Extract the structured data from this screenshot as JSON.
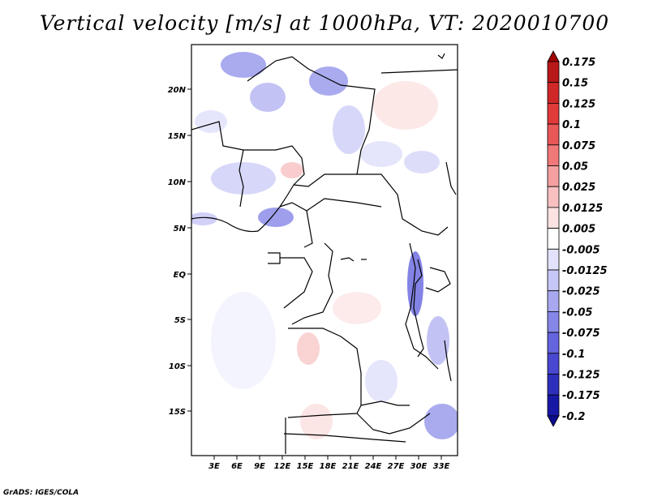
{
  "title": "Vertical velocity [m/s] at 1000hPa, VT: 2020010700",
  "credit": "GrADS: IGES/COLA",
  "map": {
    "lat_labels": [
      "20N",
      "15N",
      "10N",
      "5N",
      "EQ",
      "5S",
      "10S",
      "15S"
    ],
    "lon_labels": [
      "3E",
      "6E",
      "9E",
      "12E",
      "15E",
      "18E",
      "21E",
      "24E",
      "27E",
      "30E",
      "33E"
    ]
  },
  "colorbar": {
    "labels": [
      "0.175",
      "0.15",
      "0.125",
      "0.1",
      "0.075",
      "0.05",
      "0.025",
      "0.0125",
      "0.005",
      "-0.005",
      "-0.0125",
      "-0.025",
      "-0.05",
      "-0.075",
      "-0.1",
      "-0.125",
      "-0.175",
      "-0.2"
    ],
    "colors": [
      "#a00000",
      "#b81818",
      "#d02828",
      "#e03a3a",
      "#e85858",
      "#f07878",
      "#f4a0a0",
      "#f8c0c0",
      "#fce2e2",
      "#ffffff",
      "#e2e2fc",
      "#c6c6f6",
      "#a8a8f0",
      "#8686e8",
      "#6464de",
      "#4848d0",
      "#2e2ebc",
      "#1818a6",
      "#0c0c8c"
    ]
  }
}
